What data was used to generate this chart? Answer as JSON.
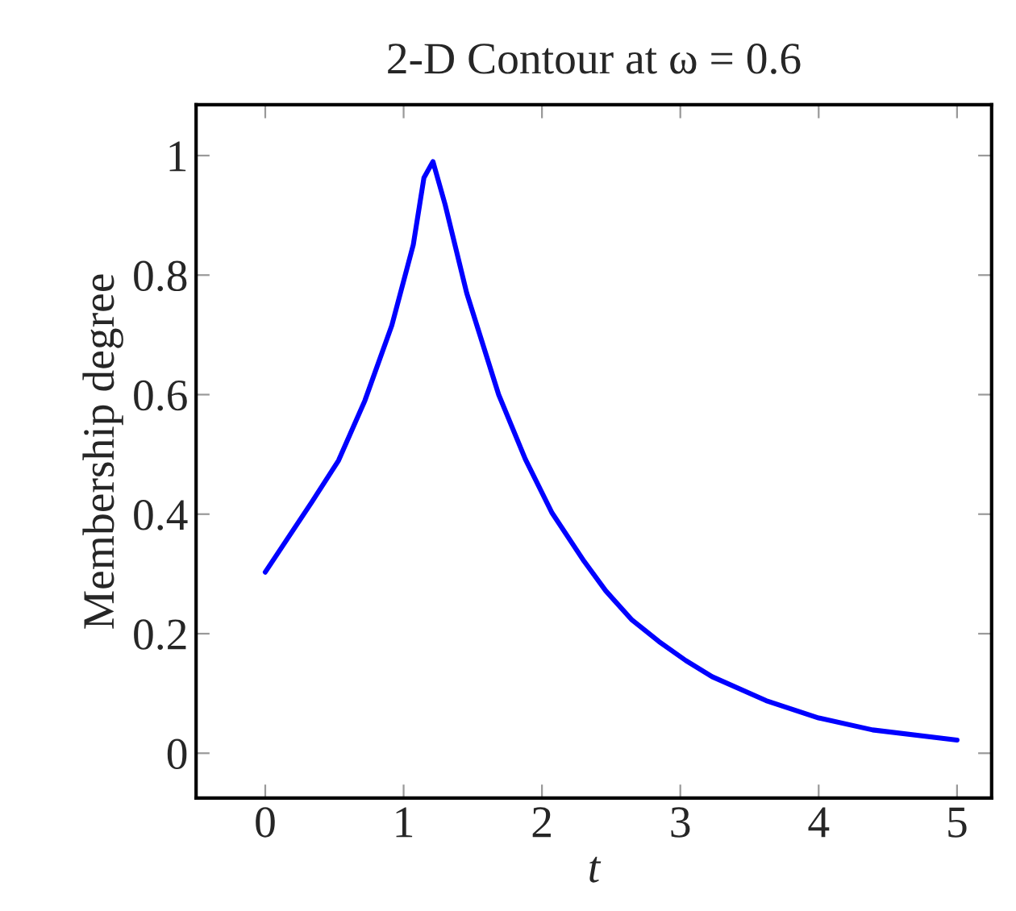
{
  "chart_data": {
    "type": "line",
    "title": "2-D Contour at ω = 0.6",
    "xlabel": "t",
    "ylabel": "Membership degree",
    "x": [
      0,
      0.336,
      0.53,
      0.72,
      0.915,
      1.07,
      1.147,
      1.212,
      1.3,
      1.456,
      1.687,
      1.88,
      2.073,
      2.305,
      2.46,
      2.65,
      2.845,
      3.04,
      3.23,
      3.62,
      4.0,
      4.39,
      5.0
    ],
    "series": [
      {
        "color": "#0000ff",
        "values": [
          0.303,
          0.42,
          0.49,
          0.59,
          0.716,
          0.851,
          0.963,
          0.99,
          0.918,
          0.77,
          0.6,
          0.492,
          0.402,
          0.321,
          0.272,
          0.223,
          0.187,
          0.155,
          0.128,
          0.088,
          0.059,
          0.039,
          0.022
        ]
      }
    ],
    "xlim": [
      -0.5,
      5.25
    ],
    "ylim": [
      -0.075,
      1.085
    ],
    "xticks": [
      0,
      1,
      2,
      3,
      4,
      5
    ],
    "yticks": [
      0,
      0.2,
      0.4,
      0.6,
      0.8,
      1
    ],
    "grid": false,
    "legend": false,
    "marker": "none",
    "line_style": "solid"
  }
}
